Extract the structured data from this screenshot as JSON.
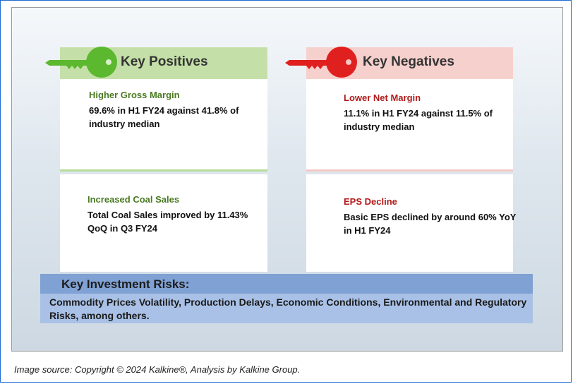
{
  "positives": {
    "header": "Key Positives",
    "accent_color": "#5cb82e",
    "items": [
      {
        "title": "Higher Gross Margin",
        "text": "69.6% in H1 FY24 against 41.8% of industry median"
      },
      {
        "title": "Increased Coal Sales",
        "text": "Total Coal Sales improved by 11.43% QoQ in Q3 FY24"
      }
    ]
  },
  "negatives": {
    "header": "Key Negatives",
    "accent_color": "#e0201e",
    "items": [
      {
        "title": "Lower Net Margin",
        "text": "11.1% in H1 FY24 against 11.5% of industry median"
      },
      {
        "title": "EPS Decline",
        "text": "Basic EPS declined by around 60% YoY in H1 FY24"
      }
    ]
  },
  "risks": {
    "header": "Key Investment Risks:",
    "text": "Commodity Prices Volatility, Production Delays, Economic Conditions, Environmental and Regulatory Risks, among others."
  },
  "caption": "Image source: Copyright © 2024 Kalkine®, Analysis by Kalkine Group.",
  "icons": [
    "key-icon"
  ]
}
